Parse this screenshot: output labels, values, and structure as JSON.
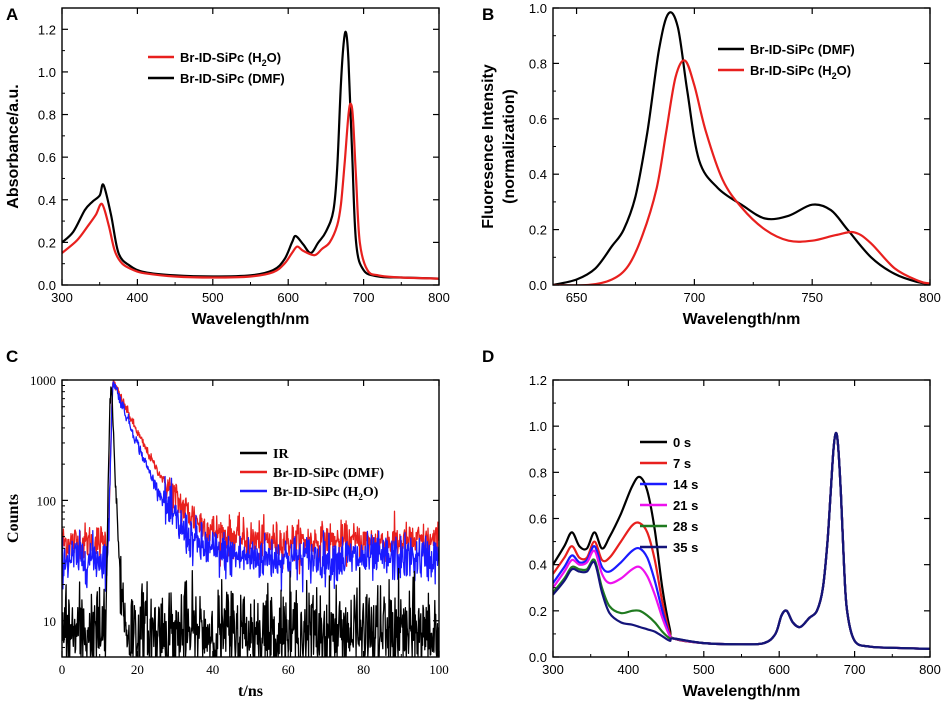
{
  "chart_data": [
    {
      "id": "A",
      "type": "line",
      "panel_label": "A",
      "xlabel": "Wavelength/nm",
      "ylabel": "Absorbance/a.u.",
      "xlim": [
        300,
        800
      ],
      "ylim": [
        0,
        1.3
      ],
      "xticks": [
        "300",
        "400",
        "500",
        "600",
        "700",
        "800"
      ],
      "yticks": [
        "0.0",
        "0.2",
        "0.4",
        "0.6",
        "0.8",
        "1.0",
        "1.2"
      ],
      "legend": [
        {
          "name": "Br-ID-SiPc (H",
          "sub": "2",
          "tail": "O)",
          "color": "#e8201e"
        },
        {
          "name": "Br-ID-SiPc (DMF)",
          "sub": "",
          "tail": "",
          "color": "#000000"
        }
      ],
      "series": [
        {
          "name": "Br-ID-SiPc (DMF)",
          "color": "#000000",
          "x": [
            300,
            315,
            330,
            340,
            350,
            355,
            365,
            375,
            390,
            410,
            450,
            500,
            550,
            580,
            595,
            605,
            610,
            620,
            630,
            640,
            650,
            660,
            665,
            670,
            674,
            677,
            680,
            685,
            690,
            700,
            720,
            750,
            800
          ],
          "y": [
            0.2,
            0.25,
            0.35,
            0.39,
            0.42,
            0.47,
            0.33,
            0.15,
            0.09,
            0.06,
            0.045,
            0.04,
            0.045,
            0.07,
            0.12,
            0.2,
            0.23,
            0.19,
            0.15,
            0.2,
            0.25,
            0.35,
            0.55,
            0.95,
            1.15,
            1.18,
            1.05,
            0.6,
            0.2,
            0.07,
            0.04,
            0.035,
            0.03
          ]
        },
        {
          "name": "Br-ID-SiPc (H2O)",
          "color": "#e8201e",
          "x": [
            300,
            320,
            335,
            345,
            353,
            362,
            370,
            380,
            395,
            410,
            450,
            500,
            550,
            580,
            595,
            605,
            612,
            620,
            635,
            645,
            655,
            665,
            670,
            675,
            680,
            683,
            686,
            690,
            695,
            705,
            720,
            750,
            800
          ],
          "y": [
            0.15,
            0.21,
            0.28,
            0.33,
            0.38,
            0.28,
            0.16,
            0.1,
            0.07,
            0.055,
            0.04,
            0.035,
            0.04,
            0.06,
            0.1,
            0.15,
            0.18,
            0.16,
            0.14,
            0.17,
            0.2,
            0.28,
            0.38,
            0.58,
            0.8,
            0.85,
            0.78,
            0.5,
            0.2,
            0.07,
            0.045,
            0.035,
            0.03
          ]
        }
      ]
    },
    {
      "id": "B",
      "type": "line",
      "panel_label": "B",
      "xlabel": "Wavelength/nm",
      "ylabel": "Fluoresence Intensity",
      "ylabel2": "(normalization)",
      "xlim": [
        640,
        800
      ],
      "ylim": [
        0,
        1.0
      ],
      "xticks": [
        "650",
        "700",
        "750",
        "800"
      ],
      "yticks": [
        "0.0",
        "0.2",
        "0.4",
        "0.6",
        "0.8",
        "1.0"
      ],
      "legend": [
        {
          "name": "Br-ID-SiPc (DMF)",
          "sub": "",
          "tail": "",
          "color": "#000000"
        },
        {
          "name": "Br-ID-SiPc (H",
          "sub": "2",
          "tail": "O)",
          "color": "#e8201e"
        }
      ],
      "series": [
        {
          "name": "Br-ID-SiPc (DMF)",
          "color": "#000000",
          "x": [
            640,
            650,
            658,
            665,
            670,
            675,
            680,
            685,
            689,
            693,
            697,
            702,
            710,
            720,
            730,
            740,
            750,
            758,
            765,
            775,
            785,
            795,
            800
          ],
          "y": [
            0.0,
            0.02,
            0.06,
            0.14,
            0.2,
            0.32,
            0.55,
            0.85,
            0.98,
            0.93,
            0.7,
            0.45,
            0.35,
            0.29,
            0.24,
            0.25,
            0.29,
            0.27,
            0.2,
            0.1,
            0.04,
            0.01,
            0.005
          ]
        },
        {
          "name": "Br-ID-SiPc (H2O)",
          "color": "#e8201e",
          "x": [
            640,
            655,
            665,
            672,
            678,
            684,
            688,
            692,
            696,
            700,
            705,
            712,
            720,
            730,
            740,
            750,
            760,
            768,
            775,
            785,
            795,
            800
          ],
          "y": [
            0.0,
            0.0,
            0.02,
            0.07,
            0.18,
            0.35,
            0.55,
            0.75,
            0.81,
            0.72,
            0.55,
            0.38,
            0.28,
            0.2,
            0.16,
            0.16,
            0.18,
            0.19,
            0.15,
            0.06,
            0.015,
            0.005
          ]
        }
      ]
    },
    {
      "id": "C",
      "type": "line",
      "panel_label": "C",
      "xlabel": "t/ns",
      "ylabel": "Counts",
      "yscale": "log",
      "xlim": [
        0,
        100
      ],
      "ylim": [
        5,
        1000
      ],
      "xticks": [
        "0",
        "20",
        "40",
        "60",
        "80",
        "100"
      ],
      "yticks": [
        "10",
        "100",
        "1000"
      ],
      "legend": [
        {
          "name": "IR",
          "sub": "",
          "tail": "",
          "color": "#000000"
        },
        {
          "name": "Br-ID-SiPc (DMF)",
          "sub": "",
          "tail": "",
          "color": "#e8201e"
        },
        {
          "name": "Br-ID-SiPc (H",
          "sub": "2",
          "tail": "O)",
          "color": "#1a1aff"
        }
      ],
      "series": [
        {
          "name": "Br-ID-SiPc (DMF)",
          "color": "#e8201e",
          "decay": {
            "baseline": 45,
            "peak_t": 13.5,
            "tau": 6.0,
            "noise": 0.18
          }
        },
        {
          "name": "Br-ID-SiPc (H2O)",
          "color": "#1a1aff",
          "decay": {
            "baseline": 33,
            "peak_t": 13.5,
            "tau": 5.0,
            "noise": 0.22
          }
        },
        {
          "name": "IR",
          "color": "#000000",
          "decay": {
            "baseline": 8,
            "peak_t": 13.0,
            "tau": 0.6,
            "noise": 0.45
          }
        }
      ]
    },
    {
      "id": "D",
      "type": "line",
      "panel_label": "D",
      "xlabel": "Wavelength/nm",
      "ylabel": "",
      "xlim": [
        300,
        800
      ],
      "ylim": [
        0,
        1.2
      ],
      "xticks": [
        "300",
        "400",
        "500",
        "600",
        "700",
        "800"
      ],
      "yticks": [
        "0.0",
        "0.2",
        "0.4",
        "0.6",
        "0.8",
        "1.0",
        "1.2"
      ],
      "legend": [
        {
          "name": "0 s",
          "sub": "",
          "tail": "",
          "color": "#000000"
        },
        {
          "name": "7 s",
          "sub": "",
          "tail": "",
          "color": "#e8201e"
        },
        {
          "name": "14 s",
          "sub": "",
          "tail": "",
          "color": "#1a1aff"
        },
        {
          "name": "21 s",
          "sub": "",
          "tail": "",
          "color": "#ee11ee"
        },
        {
          "name": "28 s",
          "sub": "",
          "tail": "",
          "color": "#1f7a1f"
        },
        {
          "name": "35 s",
          "sub": "",
          "tail": "",
          "color": "#14147a"
        }
      ],
      "common_tail": {
        "x": [
          460,
          500,
          550,
          580,
          595,
          603,
          610,
          618,
          628,
          640,
          650,
          658,
          664,
          668,
          672,
          675,
          678,
          682,
          686,
          690,
          700,
          720,
          750,
          800
        ],
        "y": [
          0.08,
          0.06,
          0.055,
          0.06,
          0.1,
          0.18,
          0.2,
          0.15,
          0.13,
          0.17,
          0.2,
          0.3,
          0.5,
          0.7,
          0.9,
          0.97,
          0.92,
          0.7,
          0.4,
          0.2,
          0.07,
          0.045,
          0.04,
          0.035
        ]
      },
      "series": [
        {
          "name": "0 s",
          "color": "#000000",
          "x": [
            300,
            315,
            325,
            335,
            345,
            355,
            365,
            375,
            390,
            405,
            415,
            425,
            435,
            445,
            455
          ],
          "y": [
            0.4,
            0.48,
            0.54,
            0.48,
            0.47,
            0.54,
            0.47,
            0.52,
            0.62,
            0.74,
            0.78,
            0.72,
            0.55,
            0.3,
            0.12
          ]
        },
        {
          "name": "7 s",
          "color": "#e8201e",
          "x": [
            300,
            315,
            325,
            335,
            345,
            355,
            365,
            375,
            390,
            405,
            415,
            425,
            435,
            445,
            455
          ],
          "y": [
            0.36,
            0.43,
            0.48,
            0.43,
            0.43,
            0.5,
            0.42,
            0.43,
            0.5,
            0.57,
            0.58,
            0.54,
            0.42,
            0.24,
            0.1
          ]
        },
        {
          "name": "14 s",
          "color": "#1a1aff",
          "x": [
            300,
            315,
            325,
            335,
            345,
            355,
            365,
            375,
            390,
            405,
            415,
            425,
            435,
            445,
            455
          ],
          "y": [
            0.32,
            0.39,
            0.44,
            0.41,
            0.42,
            0.48,
            0.39,
            0.37,
            0.41,
            0.46,
            0.47,
            0.43,
            0.33,
            0.2,
            0.09
          ]
        },
        {
          "name": "21 s",
          "color": "#ee11ee",
          "x": [
            300,
            315,
            325,
            335,
            345,
            355,
            365,
            375,
            390,
            405,
            415,
            425,
            435,
            445,
            455
          ],
          "y": [
            0.3,
            0.37,
            0.42,
            0.4,
            0.41,
            0.46,
            0.36,
            0.32,
            0.34,
            0.38,
            0.39,
            0.35,
            0.27,
            0.17,
            0.09
          ]
        },
        {
          "name": "28 s",
          "color": "#1f7a1f",
          "x": [
            300,
            315,
            325,
            335,
            345,
            355,
            365,
            375,
            390,
            405,
            415,
            425,
            435,
            445,
            455
          ],
          "y": [
            0.28,
            0.34,
            0.39,
            0.38,
            0.38,
            0.42,
            0.3,
            0.22,
            0.19,
            0.2,
            0.2,
            0.18,
            0.15,
            0.11,
            0.08
          ]
        },
        {
          "name": "35 s",
          "color": "#14147a",
          "x": [
            300,
            315,
            325,
            335,
            345,
            355,
            365,
            375,
            390,
            405,
            415,
            425,
            435,
            445,
            455
          ],
          "y": [
            0.27,
            0.33,
            0.38,
            0.37,
            0.37,
            0.41,
            0.28,
            0.19,
            0.15,
            0.14,
            0.13,
            0.12,
            0.11,
            0.09,
            0.07
          ]
        }
      ]
    }
  ]
}
